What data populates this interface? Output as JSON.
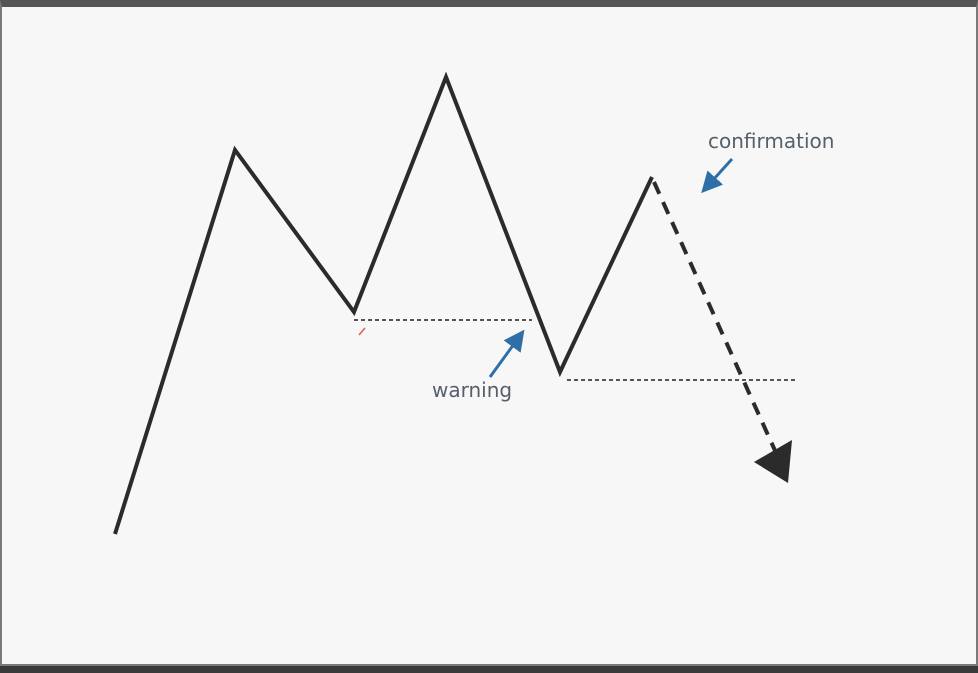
{
  "diagram": {
    "labels": {
      "warning": "warning",
      "confirmation": "confirmation"
    },
    "colors": {
      "background": "#f7f7f7",
      "price_line": "#2b2b2b",
      "neckline": "#555555",
      "annotation_arrow": "#2f6fa8",
      "label_text": "#56606a"
    }
  }
}
